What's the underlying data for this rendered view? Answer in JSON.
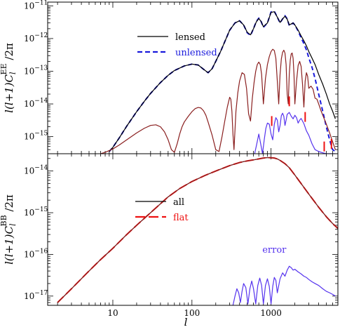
{
  "chart_data": [
    {
      "type": "line",
      "panel": "top",
      "ylabel": "l(l+1)C_l^EE /2π",
      "ylabel_parts": {
        "pre": "l(l+1)C",
        "sub": "l",
        "sup": "EE",
        "post": "/2π"
      },
      "xscale": "log",
      "yscale": "log",
      "xlim": [
        1.5,
        7000
      ],
      "ylim": [
        3e-16,
        1.3e-11
      ],
      "yticks": [
        {
          "value": 1e-15,
          "base": "10",
          "exp": "−15"
        },
        {
          "value": 1e-14,
          "base": "10",
          "exp": "−14"
        },
        {
          "value": 1e-13,
          "base": "10",
          "exp": "−13"
        },
        {
          "value": 1e-12,
          "base": "10",
          "exp": "−12"
        },
        {
          "value": 1e-11,
          "base": "10",
          "exp": "−11"
        }
      ],
      "legend": {
        "placement": "upper-middle",
        "entries": [
          {
            "label": "lensed",
            "color": "#000000",
            "style": "solid"
          },
          {
            "label": "unlensed",
            "color": "#1a1adc",
            "style": "dashed"
          }
        ]
      },
      "series": [
        {
          "name": "unlensed",
          "color": "#1a1adc",
          "style": "dashed",
          "x": [
            9,
            10,
            12,
            15,
            20,
            25,
            30,
            40,
            50,
            60,
            80,
            100,
            120,
            140,
            160,
            180,
            200,
            230,
            260,
            300,
            350,
            400,
            450,
            500,
            550,
            600,
            650,
            700,
            750,
            800,
            900,
            1000,
            1100,
            1200,
            1300,
            1400,
            1500,
            1600,
            1700,
            1800,
            1900,
            2000,
            2200,
            2400,
            2600,
            2800,
            3000,
            3300,
            3600,
            4000,
            4500,
            5000,
            5500,
            6000,
            6500
          ],
          "y": [
            3.5e-16,
            4.7e-16,
            9e-16,
            2.1e-15,
            5.8e-15,
            1.2e-14,
            2.1e-14,
            4.5e-14,
            7.5e-14,
            1.05e-13,
            1.45e-13,
            1.65e-13,
            1.55e-13,
            1.15e-13,
            9e-14,
            1.2e-13,
            2e-13,
            4e-13,
            8e-13,
            1.8e-12,
            3e-12,
            3.5e-12,
            2.6e-12,
            1.5e-12,
            1.25e-12,
            2e-12,
            3.3e-12,
            4.2e-12,
            3.3e-12,
            2.2e-12,
            3e-12,
            6.5e-12,
            6.8e-12,
            4.5e-12,
            3e-12,
            4e-12,
            5e-12,
            4e-12,
            2.5e-12,
            2.7e-12,
            3e-12,
            2.6e-12,
            1.7e-12,
            1.05e-12,
            7e-13,
            4.5e-13,
            2.6e-13,
            1.3e-13,
            6e-14,
            2e-14,
            6e-15,
            2e-15,
            8e-16,
            4e-16,
            3.5e-16
          ]
        },
        {
          "name": "lensed",
          "color": "#000000",
          "style": "solid",
          "x": [
            9,
            10,
            12,
            15,
            20,
            25,
            30,
            40,
            50,
            60,
            80,
            100,
            120,
            140,
            160,
            180,
            200,
            230,
            260,
            300,
            350,
            400,
            450,
            500,
            550,
            600,
            650,
            700,
            750,
            800,
            900,
            1000,
            1100,
            1200,
            1300,
            1400,
            1500,
            1600,
            1700,
            1800,
            1900,
            2000,
            2200,
            2400,
            2600,
            2800,
            3000,
            3300,
            3600,
            4000,
            4500,
            5000,
            5500,
            6000,
            6500
          ],
          "y": [
            3.5e-16,
            4.7e-16,
            9e-16,
            2.1e-15,
            5.8e-15,
            1.2e-14,
            2.1e-14,
            4.5e-14,
            7.5e-14,
            1.05e-13,
            1.45e-13,
            1.65e-13,
            1.55e-13,
            1.15e-13,
            9e-14,
            1.2e-13,
            2e-13,
            4e-13,
            8e-13,
            1.8e-12,
            3e-12,
            3.5e-12,
            2.6e-12,
            1.55e-12,
            1.3e-12,
            2e-12,
            3.2e-12,
            4.1e-12,
            3.3e-12,
            2.3e-12,
            3e-12,
            6.3e-12,
            6.6e-12,
            4.5e-12,
            3.1e-12,
            4e-12,
            4.8e-12,
            3.9e-12,
            2.6e-12,
            2.8e-12,
            3e-12,
            2.6e-12,
            1.8e-12,
            1.2e-12,
            8.5e-13,
            6e-13,
            4e-13,
            2.5e-13,
            1.6e-13,
            8e-14,
            4e-14,
            2e-14,
            1e-14,
            6e-15,
            3.5e-15
          ]
        },
        {
          "name": "",
          "color": "#8a1f1f",
          "style": "solid",
          "x": [
            7,
            8,
            10,
            12,
            15,
            20,
            25,
            30,
            35,
            40,
            45,
            50,
            55,
            60,
            65,
            70,
            75,
            80,
            90,
            100,
            110,
            120,
            130,
            140,
            150,
            160,
            180,
            200,
            220,
            240,
            260,
            280,
            300,
            310,
            320,
            330,
            340,
            360,
            380,
            400,
            430,
            460,
            490,
            520,
            550,
            580,
            610,
            640,
            670,
            700,
            730,
            760,
            800,
            850,
            900,
            950,
            1000,
            1050,
            1100,
            1150,
            1200,
            1250,
            1300,
            1350,
            1400,
            1450,
            1500,
            1550,
            1600,
            1650,
            1700,
            1750,
            1800,
            1850,
            1900,
            1950,
            2000,
            2100,
            2200,
            2300,
            2400,
            2500,
            2600,
            2700,
            2800,
            2900,
            3000,
            3200,
            3400,
            3600,
            3800,
            4000,
            4300,
            4600,
            5000,
            5500,
            6000,
            6500
          ],
          "y": [
            3e-16,
            3.3e-16,
            4.2e-16,
            5.5e-16,
            8e-16,
            1.3e-15,
            1.8e-15,
            2.2e-15,
            2.3e-15,
            2e-15,
            1.4e-15,
            8e-16,
            4e-16,
            3.3e-16,
            6e-16,
            1.2e-15,
            2e-15,
            2.8e-15,
            4.2e-15,
            5.8e-15,
            7.2e-15,
            7.8e-15,
            7.5e-15,
            6.2e-15,
            4.5e-15,
            2.8e-15,
            1.1e-15,
            4e-16,
            3.5e-16,
            1e-15,
            3e-15,
            8e-15,
            1.6e-14,
            1.4e-14,
            6e-15,
            1.2e-15,
            4e-16,
            6e-15,
            2.2e-14,
            5e-14,
            9e-14,
            8e-14,
            3e-14,
            5e-15,
            3e-15,
            1.5e-14,
            4.5e-14,
            1e-13,
            1.6e-13,
            1.9e-13,
            1.6e-13,
            8e-14,
            1e-14,
            6e-14,
            1.6e-13,
            2.8e-13,
            4e-13,
            4.7e-13,
            4.3e-13,
            2.5e-13,
            5e-14,
            1e-14,
            8e-14,
            2.4e-13,
            3.8e-13,
            4.4e-13,
            3.6e-13,
            1.6e-13,
            2e-14,
            1e-14,
            8e-14,
            2.2e-13,
            3.4e-13,
            3.6e-13,
            2.5e-13,
            8e-14,
            1e-14,
            5e-14,
            1.5e-13,
            2e-13,
            1.4e-13,
            4e-14,
            8e-15,
            5e-14,
            9e-14,
            7e-14,
            3e-14,
            3.5e-14,
            2.8e-14,
            1.5e-14,
            1.4e-14,
            1e-14,
            6e-15,
            4e-15,
            2.4e-15,
            1.3e-15,
            7e-16,
            4e-16
          ]
        },
        {
          "name": "",
          "color": "#5533ee",
          "style": "solid",
          "x": [
            620,
            660,
            700,
            740,
            780,
            820,
            860,
            900,
            950,
            1000,
            1050,
            1100,
            1150,
            1200,
            1250,
            1300,
            1350,
            1400,
            1450,
            1500,
            1550,
            1600,
            1700,
            1800,
            1900,
            2000,
            2100,
            2200,
            2300,
            2400,
            2600,
            2800,
            3000,
            3300,
            3600,
            4000,
            4500,
            5000,
            5500,
            6000,
            6500
          ],
          "y": [
            3e-16,
            6e-16,
            1.2e-15,
            6e-16,
            3e-16,
            8e-16,
            1.8e-15,
            2.6e-15,
            2.4e-15,
            1.2e-15,
            8e-16,
            2.4e-15,
            3.8e-15,
            3.2e-15,
            1.4e-15,
            2.2e-15,
            4.4e-15,
            5.2e-15,
            4.2e-15,
            2.2e-15,
            3.2e-15,
            4.8e-15,
            5.5e-15,
            4.2e-15,
            3.5e-15,
            4.5e-15,
            3.8e-15,
            2.6e-15,
            3.2e-15,
            3.6e-15,
            2.5e-15,
            1.5e-15,
            1.1e-15,
            6e-16,
            4e-16,
            3.5e-16,
            3.2e-16,
            3e-16,
            3e-16,
            3e-16,
            3e-16
          ]
        }
      ],
      "markers": [
        {
          "x": 1020,
          "y": 3e-15
        },
        {
          "x": 1700,
          "y": 1.2e-14
        },
        {
          "x": 2700,
          "y": 4e-15
        },
        {
          "x": 4700,
          "y": 5e-16
        },
        {
          "x": 5800,
          "y": 6e-16
        }
      ],
      "marker_color": "#ee1111"
    },
    {
      "type": "line",
      "panel": "bottom",
      "xlabel": "l",
      "ylabel": "l(l+1)C_l^BB /2π",
      "ylabel_parts": {
        "pre": "l(l+1)C",
        "sub": "l",
        "sup": "BB",
        "post": "/2π"
      },
      "xscale": "log",
      "yscale": "log",
      "xlim": [
        1.5,
        7000
      ],
      "ylim": [
        6e-18,
        2.6e-14
      ],
      "xticks": [
        {
          "value": 10,
          "label": "10"
        },
        {
          "value": 100,
          "label": "100"
        },
        {
          "value": 1000,
          "label": "1000"
        }
      ],
      "yticks": [
        {
          "value": 1e-17,
          "base": "10",
          "exp": "−17"
        },
        {
          "value": 1e-16,
          "base": "10",
          "exp": "−16"
        },
        {
          "value": 1e-15,
          "base": "10",
          "exp": "−15"
        },
        {
          "value": 1e-14,
          "base": "10",
          "exp": "−14"
        }
      ],
      "legend": {
        "placement": "upper-left",
        "entries": [
          {
            "label": "all",
            "color": "#000000",
            "style": "solid"
          },
          {
            "label": "flat",
            "color": "#ee1111",
            "style": "dashed"
          }
        ]
      },
      "annotations": [
        {
          "text": "error",
          "x": 1100,
          "y": 1.1e-16,
          "color": "#5533ee"
        }
      ],
      "series": [
        {
          "name": "all",
          "color": "#000000",
          "style": "solid",
          "x": [
            2,
            3,
            5,
            7,
            10,
            15,
            20,
            30,
            50,
            70,
            100,
            150,
            200,
            300,
            400,
            500,
            600,
            700,
            800,
            900,
            1000,
            1100,
            1200,
            1300,
            1500,
            1700,
            2000,
            2500,
            3000,
            3500,
            4000,
            5000,
            6000,
            7000
          ],
          "y": [
            7e-18,
            1.5e-17,
            4e-17,
            7.5e-17,
            1.4e-16,
            3e-16,
            5e-16,
            1e-15,
            2.4e-15,
            3.8e-15,
            5.6e-15,
            8e-15,
            1e-14,
            1.35e-14,
            1.6e-14,
            1.75e-14,
            1.85e-14,
            1.95e-14,
            2.05e-14,
            2.1e-14,
            2.08e-14,
            2.05e-14,
            1.95e-14,
            1.8e-14,
            1.5e-14,
            1.2e-14,
            8e-15,
            4.5e-15,
            2.8e-15,
            1.9e-15,
            1.35e-15,
            8e-16,
            5.5e-16,
            4.2e-16
          ]
        },
        {
          "name": "flat",
          "color": "#ee1111",
          "style": "dashed",
          "x": [
            2,
            3,
            5,
            7,
            10,
            15,
            20,
            30,
            50,
            70,
            100,
            150,
            200,
            300,
            400,
            500,
            600,
            700,
            800,
            900,
            1000,
            1100,
            1200,
            1300,
            1500,
            1700,
            2000,
            2500,
            3000,
            3500,
            4000,
            5000,
            6000,
            7000
          ],
          "y": [
            7e-18,
            1.5e-17,
            4e-17,
            7.5e-17,
            1.4e-16,
            3e-16,
            5e-16,
            1e-15,
            2.4e-15,
            3.8e-15,
            5.6e-15,
            8e-15,
            1e-14,
            1.35e-14,
            1.6e-14,
            1.75e-14,
            1.85e-14,
            1.95e-14,
            2.05e-14,
            2.1e-14,
            2.08e-14,
            2.05e-14,
            1.95e-14,
            1.8e-14,
            1.5e-14,
            1.2e-14,
            8e-15,
            4.5e-15,
            2.8e-15,
            1.9e-15,
            1.35e-15,
            8e-16,
            5.5e-16,
            4.2e-16
          ]
        },
        {
          "name": "",
          "color": "#8a1f1f",
          "style": "solid",
          "x": [
            2,
            3,
            5,
            7,
            10,
            15,
            20,
            30,
            50,
            70,
            100,
            150,
            200,
            300,
            400,
            500,
            600,
            700,
            800,
            900,
            1000,
            1100,
            1200,
            1300,
            1500,
            1700,
            2000,
            2500,
            3000,
            3500,
            4000,
            5000,
            6000,
            7000
          ],
          "y": [
            7e-18,
            1.5e-17,
            4e-17,
            7.5e-17,
            1.4e-16,
            3e-16,
            5e-16,
            1e-15,
            2.4e-15,
            3.8e-15,
            5.6e-15,
            8e-15,
            1e-14,
            1.35e-14,
            1.6e-14,
            1.75e-14,
            1.85e-14,
            1.95e-14,
            2.05e-14,
            2.1e-14,
            2.08e-14,
            2.05e-14,
            1.95e-14,
            1.8e-14,
            1.5e-14,
            1.2e-14,
            8e-15,
            4.5e-15,
            2.8e-15,
            1.9e-15,
            1.35e-15,
            8e-16,
            5.5e-16,
            4.2e-16
          ]
        },
        {
          "name": "error",
          "color": "#5533ee",
          "style": "solid",
          "x": [
            330,
            350,
            370,
            390,
            410,
            430,
            450,
            480,
            510,
            540,
            570,
            600,
            640,
            680,
            720,
            760,
            800,
            850,
            900,
            950,
            1000,
            1050,
            1100,
            1150,
            1200,
            1300,
            1400,
            1500,
            1600,
            1700,
            1800,
            1900,
            2000,
            2200,
            2400,
            2600,
            2800,
            3000,
            3300,
            3600,
            4000,
            4500,
            5000,
            5500,
            6000,
            6500
          ],
          "y": [
            6e-18,
            1e-17,
            1.5e-17,
            1.2e-17,
            7e-18,
            1.3e-17,
            2e-17,
            1.6e-17,
            6.5e-18,
            1.5e-17,
            2.3e-17,
            1.5e-17,
            6.5e-18,
            1.8e-17,
            2.7e-17,
            1.8e-17,
            6.5e-18,
            1.8e-17,
            2.6e-17,
            1.7e-17,
            6.5e-18,
            1.7e-17,
            2.8e-17,
            2.4e-17,
            1.2e-17,
            2.6e-17,
            3.6e-17,
            3e-17,
            4.2e-17,
            5.2e-17,
            4.8e-17,
            4.2e-17,
            4.4e-17,
            3.8e-17,
            3.4e-17,
            3e-17,
            2.8e-17,
            2.5e-17,
            2.2e-17,
            2e-17,
            1.8e-17,
            1.5e-17,
            1.3e-17,
            1.2e-17,
            1.1e-17,
            1e-17
          ]
        }
      ]
    }
  ]
}
